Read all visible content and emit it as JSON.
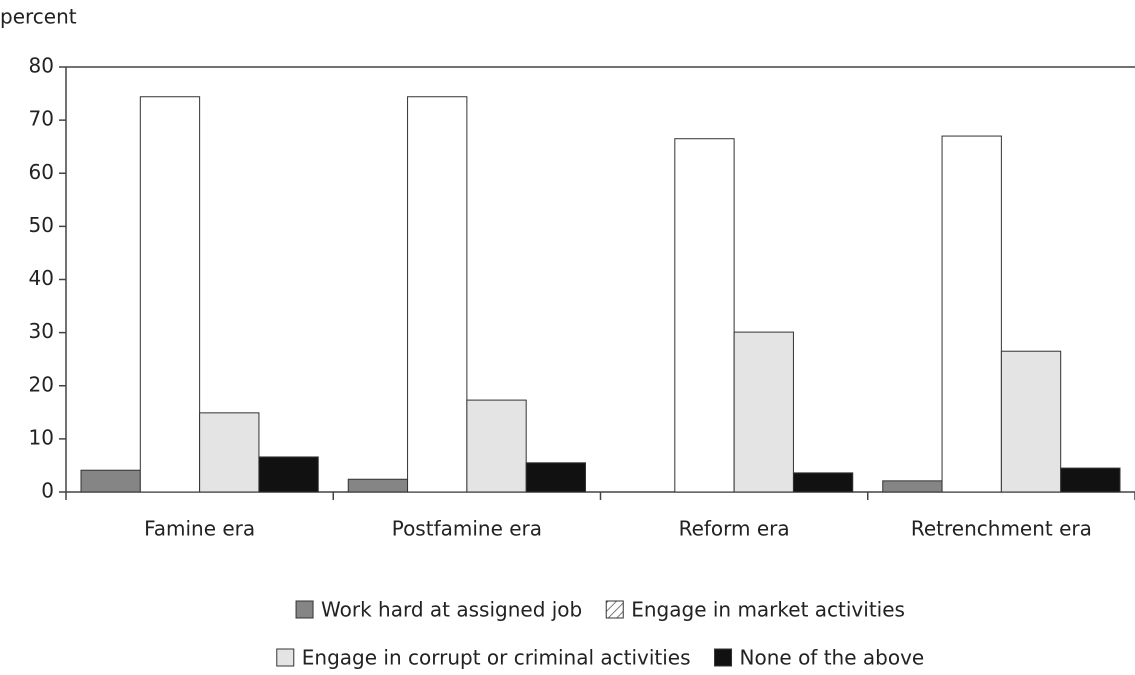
{
  "chart_data": {
    "type": "bar",
    "y_axis_label": "percent",
    "categories": [
      "Famine era",
      "Postfamine era",
      "Reform era",
      "Retrenchment era"
    ],
    "series": [
      {
        "name": "Work hard at assigned job",
        "color": "#858585",
        "values": [
          4.1,
          2.4,
          0,
          2.1
        ]
      },
      {
        "name": "Engage in market activities",
        "color": "#ffffff",
        "hatch": true,
        "values": [
          74.4,
          74.4,
          66.5,
          67
        ]
      },
      {
        "name": "Engage in corrupt or criminal activities",
        "color": "#e4e4e4",
        "values": [
          14.9,
          17.3,
          30.1,
          26.5
        ]
      },
      {
        "name": "None of the above",
        "color": "#111111",
        "values": [
          6.6,
          5.5,
          3.6,
          4.5
        ]
      }
    ],
    "ylim": [
      0,
      80
    ],
    "yticks": [
      0,
      10,
      20,
      30,
      40,
      50,
      60,
      70,
      80
    ],
    "grid": false
  }
}
